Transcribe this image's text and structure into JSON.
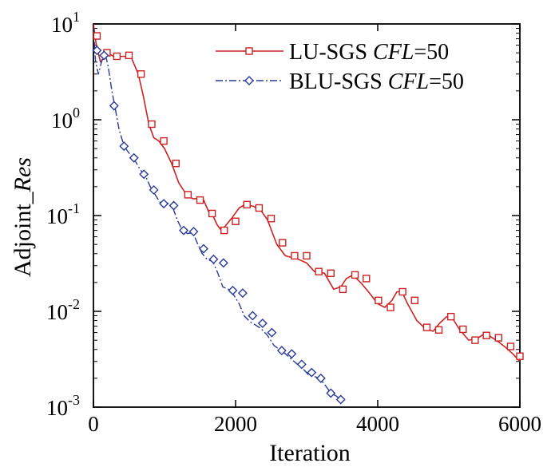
{
  "chart_data": {
    "type": "line",
    "title": "",
    "xlabel": "Iteration",
    "ylabel": {
      "main": "Adjoint_",
      "italic": "Res"
    },
    "xlim": [
      0,
      6000
    ],
    "ylim_log10": [
      -3,
      1
    ],
    "y_scale": "log",
    "x_ticks": [
      0,
      2000,
      4000,
      6000
    ],
    "x_tick_labels": [
      "0",
      "2000",
      "4000",
      "6000"
    ],
    "y_ticks": [
      {
        "value": 10,
        "base": "10",
        "exp": "1"
      },
      {
        "value": 1,
        "base": "10",
        "exp": "0"
      },
      {
        "value": 0.1,
        "base": "10",
        "exp": "-1"
      },
      {
        "value": 0.01,
        "base": "10",
        "exp": "-2"
      },
      {
        "value": 0.001,
        "base": "10",
        "exp": "-3"
      }
    ],
    "legend_position": "top-right",
    "series": [
      {
        "name": "LU-SGS",
        "legend_prefix": "LU-SGS ",
        "legend_italic": "CFL",
        "legend_suffix": "=50",
        "color": "#cc2222",
        "marker": "square",
        "dash": "solid",
        "line": [
          [
            0,
            10
          ],
          [
            40,
            6
          ],
          [
            100,
            4
          ],
          [
            160,
            4.5
          ],
          [
            200,
            5
          ],
          [
            300,
            4.5
          ],
          [
            420,
            4.6
          ],
          [
            530,
            4.5
          ],
          [
            630,
            3
          ],
          [
            700,
            1.8
          ],
          [
            780,
            0.9
          ],
          [
            850,
            0.65
          ],
          [
            920,
            0.6
          ],
          [
            1000,
            0.5
          ],
          [
            1100,
            0.35
          ],
          [
            1200,
            0.22
          ],
          [
            1320,
            0.16
          ],
          [
            1400,
            0.15
          ],
          [
            1480,
            0.15
          ],
          [
            1550,
            0.145
          ],
          [
            1620,
            0.11
          ],
          [
            1680,
            0.1
          ],
          [
            1740,
            0.08
          ],
          [
            1800,
            0.07
          ],
          [
            1870,
            0.08
          ],
          [
            1950,
            0.095
          ],
          [
            2050,
            0.12
          ],
          [
            2130,
            0.13
          ],
          [
            2250,
            0.125
          ],
          [
            2350,
            0.115
          ],
          [
            2450,
            0.09
          ],
          [
            2580,
            0.05
          ],
          [
            2700,
            0.038
          ],
          [
            2880,
            0.035
          ],
          [
            3000,
            0.032
          ],
          [
            3110,
            0.026
          ],
          [
            3250,
            0.025
          ],
          [
            3380,
            0.017
          ],
          [
            3480,
            0.018
          ],
          [
            3560,
            0.022
          ],
          [
            3650,
            0.024
          ],
          [
            3760,
            0.02
          ],
          [
            3870,
            0.016
          ],
          [
            4000,
            0.012
          ],
          [
            4100,
            0.011
          ],
          [
            4200,
            0.013
          ],
          [
            4270,
            0.016
          ],
          [
            4340,
            0.016
          ],
          [
            4420,
            0.012
          ],
          [
            4550,
            0.008
          ],
          [
            4680,
            0.0065
          ],
          [
            4780,
            0.0062
          ],
          [
            4870,
            0.0075
          ],
          [
            4970,
            0.0088
          ],
          [
            5050,
            0.0085
          ],
          [
            5150,
            0.0065
          ],
          [
            5280,
            0.005
          ],
          [
            5400,
            0.0052
          ],
          [
            5480,
            0.0057
          ],
          [
            5580,
            0.0055
          ],
          [
            5700,
            0.0048
          ],
          [
            5800,
            0.0042
          ],
          [
            5900,
            0.0036
          ],
          [
            6000,
            0.003
          ]
        ],
        "markers": [
          [
            50,
            7.5
          ],
          [
            190,
            5
          ],
          [
            330,
            4.6
          ],
          [
            500,
            4.7
          ],
          [
            670,
            3
          ],
          [
            820,
            0.9
          ],
          [
            990,
            0.6
          ],
          [
            1160,
            0.35
          ],
          [
            1330,
            0.165
          ],
          [
            1500,
            0.145
          ],
          [
            1670,
            0.105
          ],
          [
            1840,
            0.07
          ],
          [
            2000,
            0.087
          ],
          [
            2160,
            0.13
          ],
          [
            2330,
            0.12
          ],
          [
            2500,
            0.093
          ],
          [
            2660,
            0.052
          ],
          [
            2830,
            0.038
          ],
          [
            3000,
            0.038
          ],
          [
            3170,
            0.026
          ],
          [
            3340,
            0.025
          ],
          [
            3510,
            0.017
          ],
          [
            3680,
            0.024
          ],
          [
            3840,
            0.022
          ],
          [
            4010,
            0.013
          ],
          [
            4180,
            0.011
          ],
          [
            4350,
            0.016
          ],
          [
            4520,
            0.013
          ],
          [
            4690,
            0.0068
          ],
          [
            4860,
            0.0064
          ],
          [
            5030,
            0.0088
          ],
          [
            5200,
            0.0065
          ],
          [
            5370,
            0.005
          ],
          [
            5530,
            0.0056
          ],
          [
            5700,
            0.0053
          ],
          [
            5870,
            0.0043
          ],
          [
            6000,
            0.0034
          ]
        ]
      },
      {
        "name": "BLU-SGS",
        "legend_prefix": "BLU-SGS ",
        "legend_italic": "CFL",
        "legend_suffix": "=50",
        "color": "#2a3a9a",
        "marker": "diamond",
        "dash": "dashdot",
        "line": [
          [
            0,
            9
          ],
          [
            30,
            4
          ],
          [
            70,
            3
          ],
          [
            120,
            4.2
          ],
          [
            170,
            4.8
          ],
          [
            210,
            3.5
          ],
          [
            260,
            2
          ],
          [
            300,
            1.4
          ],
          [
            360,
            0.8
          ],
          [
            430,
            0.53
          ],
          [
            500,
            0.45
          ],
          [
            580,
            0.38
          ],
          [
            660,
            0.3
          ],
          [
            730,
            0.26
          ],
          [
            800,
            0.2
          ],
          [
            880,
            0.16
          ],
          [
            960,
            0.13
          ],
          [
            1040,
            0.135
          ],
          [
            1110,
            0.125
          ],
          [
            1180,
            0.09
          ],
          [
            1250,
            0.07
          ],
          [
            1320,
            0.065
          ],
          [
            1400,
            0.066
          ],
          [
            1470,
            0.05
          ],
          [
            1530,
            0.04
          ],
          [
            1600,
            0.035
          ],
          [
            1680,
            0.033
          ],
          [
            1750,
            0.025
          ],
          [
            1820,
            0.018
          ],
          [
            1900,
            0.017
          ],
          [
            1970,
            0.015
          ],
          [
            2050,
            0.012
          ],
          [
            2120,
            0.009
          ],
          [
            2200,
            0.0078
          ],
          [
            2280,
            0.0072
          ],
          [
            2360,
            0.0066
          ],
          [
            2450,
            0.0056
          ],
          [
            2540,
            0.0044
          ],
          [
            2620,
            0.004
          ],
          [
            2700,
            0.0036
          ],
          [
            2780,
            0.0032
          ],
          [
            2870,
            0.0028
          ],
          [
            2950,
            0.0025
          ],
          [
            3020,
            0.0022
          ],
          [
            3100,
            0.0021
          ],
          [
            3180,
            0.002
          ],
          [
            3260,
            0.0017
          ],
          [
            3340,
            0.0014
          ],
          [
            3420,
            0.0013
          ],
          [
            3480,
            0.0012
          ]
        ],
        "markers": [
          [
            50,
            5.3
          ],
          [
            150,
            4.7
          ],
          [
            290,
            1.4
          ],
          [
            430,
            0.53
          ],
          [
            570,
            0.4
          ],
          [
            710,
            0.27
          ],
          [
            850,
            0.185
          ],
          [
            990,
            0.133
          ],
          [
            1130,
            0.127
          ],
          [
            1270,
            0.07
          ],
          [
            1410,
            0.068
          ],
          [
            1550,
            0.045
          ],
          [
            1690,
            0.035
          ],
          [
            1830,
            0.032
          ],
          [
            1960,
            0.0165
          ],
          [
            2100,
            0.0155
          ],
          [
            2240,
            0.009
          ],
          [
            2380,
            0.0075
          ],
          [
            2510,
            0.006
          ],
          [
            2650,
            0.0039
          ],
          [
            2790,
            0.0036
          ],
          [
            2930,
            0.0028
          ],
          [
            3070,
            0.0023
          ],
          [
            3200,
            0.002
          ],
          [
            3340,
            0.0014
          ],
          [
            3480,
            0.0012
          ]
        ]
      }
    ]
  }
}
